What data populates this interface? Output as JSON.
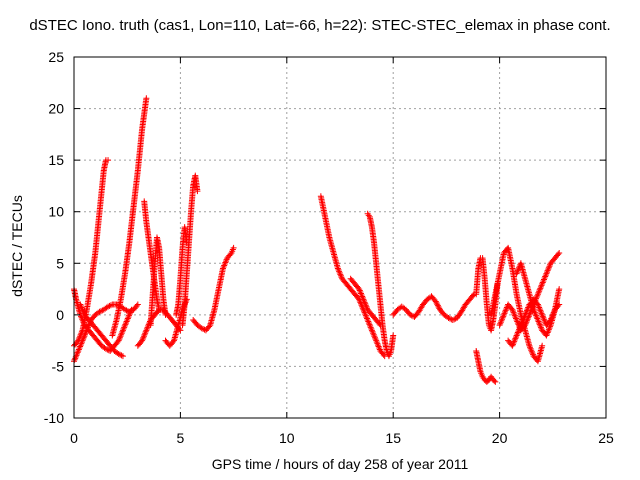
{
  "chart_data": {
    "type": "scatter",
    "title": "dSTEC Iono. truth (cas1, Lon=110, Lat=-66, h=22): STEC-STEC_elemax in phase cont.",
    "xlabel": "GPS time / hours of day 258 of year 2011",
    "ylabel": "dSTEC  / TECUs",
    "xlim": [
      0,
      25
    ],
    "ylim": [
      -10,
      25
    ],
    "xticks": [
      0,
      5,
      10,
      15,
      20,
      25
    ],
    "yticks": [
      -10,
      -5,
      0,
      5,
      10,
      15,
      20,
      25
    ],
    "grid": true,
    "marker": "+",
    "color": "#ff0000",
    "series": [
      {
        "arcs": [
          {
            "x": [
              0.0,
              0.2,
              0.4,
              0.6,
              0.8,
              1.0,
              1.2,
              1.4,
              1.5,
              1.6
            ],
            "y": [
              -3.0,
              -2.5,
              -1.5,
              0.5,
              3.0,
              6.0,
              10.0,
              14.0,
              15.0,
              15.0
            ]
          },
          {
            "x": [
              0.0,
              0.1,
              0.3,
              0.5,
              0.7,
              0.9,
              1.1,
              1.3,
              1.5,
              1.7,
              1.9,
              2.1,
              2.3,
              2.5,
              2.7
            ],
            "y": [
              2.5,
              1.5,
              0.0,
              -1.0,
              -1.5,
              -2.0,
              -2.5,
              -3.0,
              -3.3,
              -3.5,
              -3.0,
              -2.5,
              -1.5,
              -0.5,
              0.5
            ]
          },
          {
            "x": [
              0.0,
              0.2,
              0.4,
              0.6,
              0.8,
              1.0,
              1.2,
              1.4,
              1.6,
              1.8,
              2.0,
              2.2,
              2.4,
              2.6,
              2.8,
              3.0
            ],
            "y": [
              -4.5,
              -3.5,
              -2.5,
              -1.5,
              -0.5,
              0.0,
              0.3,
              0.5,
              0.8,
              1.0,
              1.0,
              0.8,
              0.5,
              0.3,
              0.5,
              1.0
            ]
          },
          {
            "x": [
              0.3,
              0.5,
              0.7,
              0.9,
              1.1,
              1.3,
              1.5,
              1.7,
              1.9,
              2.1,
              2.3
            ],
            "y": [
              1.0,
              0.0,
              -0.5,
              -1.0,
              -1.5,
              -2.0,
              -2.5,
              -3.0,
              -3.5,
              -3.8,
              -4.0
            ]
          },
          {
            "x": [
              1.8,
              2.0,
              2.2,
              2.4,
              2.6,
              2.8,
              3.0,
              3.1,
              3.2,
              3.3,
              3.4
            ],
            "y": [
              -2.0,
              -0.5,
              1.5,
              4.0,
              7.0,
              10.5,
              14.0,
              16.0,
              18.0,
              19.5,
              21.0
            ]
          },
          {
            "x": [
              3.3,
              3.4,
              3.5,
              3.6,
              3.7,
              3.8,
              3.9,
              4.0
            ],
            "y": [
              11.0,
              9.0,
              7.5,
              6.0,
              4.5,
              3.0,
              1.5,
              0.5
            ]
          },
          {
            "x": [
              3.0,
              3.2,
              3.4,
              3.6,
              3.8,
              4.0,
              4.2,
              4.4,
              4.6,
              4.8,
              5.0
            ],
            "y": [
              -3.0,
              -2.5,
              -1.5,
              -0.5,
              0.0,
              0.5,
              0.5,
              0.0,
              -0.5,
              -1.0,
              -1.5
            ]
          },
          {
            "x": [
              3.6,
              3.7,
              3.8,
              3.9,
              4.0,
              4.1,
              4.2,
              4.3
            ],
            "y": [
              -1.0,
              2.0,
              5.0,
              7.5,
              6.5,
              4.0,
              1.5,
              0.0
            ]
          },
          {
            "x": [
              4.3,
              4.5,
              4.7,
              4.9,
              5.1,
              5.3
            ],
            "y": [
              -2.5,
              -3.0,
              -2.5,
              -1.0,
              0.5,
              1.5
            ]
          },
          {
            "x": [
              4.8,
              4.9,
              5.0,
              5.1,
              5.2,
              5.3
            ],
            "y": [
              0.0,
              1.0,
              3.5,
              6.5,
              8.5,
              7.0
            ]
          },
          {
            "x": [
              5.1,
              5.2,
              5.3,
              5.4,
              5.5,
              5.6,
              5.7,
              5.8
            ],
            "y": [
              -1.0,
              1.0,
              4.0,
              7.0,
              10.0,
              12.5,
              13.5,
              12.0
            ]
          },
          {
            "x": [
              5.6,
              5.8,
              6.0,
              6.2,
              6.4,
              6.6,
              6.8,
              7.0,
              7.2,
              7.4,
              7.5
            ],
            "y": [
              -0.5,
              -1.0,
              -1.3,
              -1.5,
              -1.0,
              0.5,
              2.5,
              4.5,
              5.5,
              6.0,
              6.5
            ]
          },
          {
            "x": [
              11.6,
              11.8,
              12.0,
              12.2,
              12.4,
              12.6,
              12.8,
              13.0,
              13.2,
              13.4,
              13.6,
              13.8,
              14.0,
              14.2,
              14.4,
              14.6
            ],
            "y": [
              11.5,
              9.5,
              7.5,
              6.0,
              4.5,
              3.5,
              3.0,
              2.5,
              2.0,
              1.5,
              0.5,
              -0.5,
              -1.5,
              -2.5,
              -3.5,
              -4.0
            ]
          },
          {
            "x": [
              13.0,
              13.2,
              13.4,
              13.6,
              13.8,
              14.0,
              14.2,
              14.4
            ],
            "y": [
              3.5,
              3.0,
              2.5,
              1.5,
              0.5,
              0.0,
              -0.5,
              -1.0
            ]
          },
          {
            "x": [
              13.8,
              13.9,
              14.0,
              14.1,
              14.2,
              14.3,
              14.4,
              14.5,
              14.6,
              14.7,
              14.8,
              14.9,
              15.0
            ],
            "y": [
              9.8,
              9.5,
              8.5,
              7.0,
              5.0,
              3.0,
              1.0,
              -1.0,
              -2.5,
              -3.5,
              -4.0,
              -3.5,
              -2.0
            ]
          },
          {
            "x": [
              15.0,
              15.2,
              15.4,
              15.6,
              15.8,
              16.0,
              16.2,
              16.4,
              16.6,
              16.8,
              17.0,
              17.2,
              17.4,
              17.6,
              17.8,
              18.0,
              18.2,
              18.4,
              18.6,
              18.8
            ],
            "y": [
              0.0,
              0.5,
              0.8,
              0.5,
              0.0,
              -0.2,
              0.3,
              1.0,
              1.5,
              1.8,
              1.3,
              0.5,
              0.0,
              -0.3,
              -0.5,
              -0.3,
              0.3,
              1.0,
              1.5,
              2.0
            ]
          },
          {
            "x": [
              18.9,
              19.0,
              19.1,
              19.2,
              19.3,
              19.4,
              19.5,
              19.6,
              19.7,
              19.8
            ],
            "y": [
              -3.5,
              -4.5,
              -5.5,
              -6.0,
              -6.3,
              -6.5,
              -6.3,
              -6.0,
              -6.3,
              -6.5
            ]
          },
          {
            "x": [
              18.9,
              19.0,
              19.1,
              19.2,
              19.3,
              19.4,
              19.5,
              19.6,
              19.7,
              19.8,
              19.9
            ],
            "y": [
              2.0,
              4.5,
              5.5,
              5.5,
              3.5,
              1.0,
              -1.0,
              -1.5,
              -0.5,
              1.0,
              3.0
            ]
          },
          {
            "x": [
              19.6,
              19.8,
              20.0,
              20.2,
              20.4,
              20.6,
              20.8,
              21.0,
              21.2,
              21.4,
              21.6,
              21.8,
              22.0
            ],
            "y": [
              0.0,
              2.0,
              4.0,
              6.0,
              6.5,
              4.5,
              2.0,
              0.0,
              -1.5,
              -3.0,
              -4.0,
              -4.5,
              -3.0
            ]
          },
          {
            "x": [
              20.0,
              20.2,
              20.4,
              20.6,
              20.8,
              21.0,
              21.2,
              21.4,
              21.6,
              21.8,
              22.0,
              22.2,
              22.4,
              22.6,
              22.8
            ],
            "y": [
              -1.0,
              0.0,
              1.0,
              0.5,
              -0.5,
              -1.5,
              -1.0,
              0.0,
              1.0,
              2.0,
              3.0,
              4.0,
              5.0,
              5.5,
              6.0
            ]
          },
          {
            "x": [
              20.4,
              20.6,
              20.8,
              21.0,
              21.2,
              21.4,
              21.6,
              21.8,
              22.0,
              22.2,
              22.4,
              22.6,
              22.8
            ],
            "y": [
              -2.5,
              -3.0,
              -2.0,
              -1.0,
              0.0,
              1.0,
              1.5,
              1.0,
              0.0,
              -1.0,
              -0.5,
              0.5,
              2.5
            ]
          },
          {
            "x": [
              20.8,
              21.0,
              21.2,
              21.4,
              21.6,
              21.8,
              22.0,
              22.2,
              22.4,
              22.6,
              22.8
            ],
            "y": [
              4.0,
              5.0,
              3.5,
              2.0,
              0.5,
              -0.5,
              -1.5,
              -2.0,
              -1.0,
              0.5,
              1.0
            ]
          }
        ]
      }
    ]
  }
}
